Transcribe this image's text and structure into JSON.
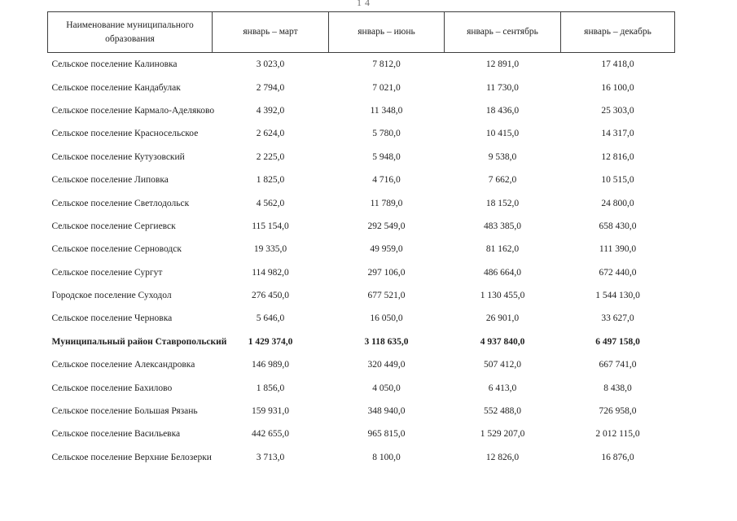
{
  "page": {
    "number": "14"
  },
  "table": {
    "headers": [
      "Наименование муниципального образования",
      "январь – март",
      "январь – июнь",
      "январь – сентябрь",
      "январь – декабрь"
    ],
    "rows": [
      {
        "name": "Сельское поселение Калиновка",
        "values": [
          "3 023,0",
          "7 812,0",
          "12 891,0",
          "17 418,0"
        ],
        "bold": false
      },
      {
        "name": "Сельское поселение Кандабулак",
        "values": [
          "2 794,0",
          "7 021,0",
          "11 730,0",
          "16 100,0"
        ],
        "bold": false
      },
      {
        "name": "Сельское поселение Кармало-Аделяково",
        "values": [
          "4 392,0",
          "11 348,0",
          "18 436,0",
          "25 303,0"
        ],
        "bold": false
      },
      {
        "name": "Сельское поселение Красносельское",
        "values": [
          "2 624,0",
          "5 780,0",
          "10 415,0",
          "14 317,0"
        ],
        "bold": false
      },
      {
        "name": "Сельское поселение Кутузовский",
        "values": [
          "2 225,0",
          "5 948,0",
          "9 538,0",
          "12 816,0"
        ],
        "bold": false
      },
      {
        "name": "Сельское поселение Липовка",
        "values": [
          "1 825,0",
          "4 716,0",
          "7 662,0",
          "10 515,0"
        ],
        "bold": false
      },
      {
        "name": "Сельское поселение Светлодольск",
        "values": [
          "4 562,0",
          "11 789,0",
          "18 152,0",
          "24 800,0"
        ],
        "bold": false
      },
      {
        "name": "Сельское поселение Сергиевск",
        "values": [
          "115 154,0",
          "292 549,0",
          "483 385,0",
          "658 430,0"
        ],
        "bold": false
      },
      {
        "name": "Сельское поселение Серноводск",
        "values": [
          "19 335,0",
          "49 959,0",
          "81 162,0",
          "111 390,0"
        ],
        "bold": false
      },
      {
        "name": "Сельское поселение Сургут",
        "values": [
          "114 982,0",
          "297 106,0",
          "486 664,0",
          "672 440,0"
        ],
        "bold": false
      },
      {
        "name": "Городское поселение Суходол",
        "values": [
          "276 450,0",
          "677 521,0",
          "1 130 455,0",
          "1 544 130,0"
        ],
        "bold": false
      },
      {
        "name": "Сельское поселение Черновка",
        "values": [
          "5 646,0",
          "16 050,0",
          "26 901,0",
          "33 627,0"
        ],
        "bold": false
      },
      {
        "name": "Муниципальный район Ставропольский",
        "values": [
          "1 429 374,0",
          "3 118 635,0",
          "4 937 840,0",
          "6 497 158,0"
        ],
        "bold": true
      },
      {
        "name": "Сельское поселение Александровка",
        "values": [
          "146 989,0",
          "320 449,0",
          "507 412,0",
          "667 741,0"
        ],
        "bold": false
      },
      {
        "name": "Сельское поселение Бахилово",
        "values": [
          "1 856,0",
          "4 050,0",
          "6 413,0",
          "8 438,0"
        ],
        "bold": false
      },
      {
        "name": "Сельское поселение Большая Рязань",
        "values": [
          "159 931,0",
          "348 940,0",
          "552 488,0",
          "726 958,0"
        ],
        "bold": false
      },
      {
        "name": "Сельское поселение Васильевка",
        "values": [
          "442 655,0",
          "965 815,0",
          "1 529 207,0",
          "2 012 115,0"
        ],
        "bold": false
      },
      {
        "name": "Сельское поселение Верхние Белозерки",
        "values": [
          "3 713,0",
          "8 100,0",
          "12 826,0",
          "16 876,0"
        ],
        "bold": false
      }
    ]
  }
}
